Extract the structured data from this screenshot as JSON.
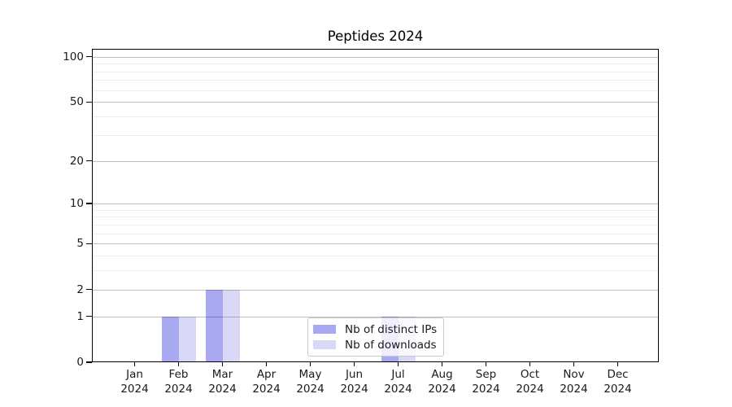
{
  "title": "Peptides 2024",
  "legend": {
    "items": [
      {
        "label": "Nb of distinct IPs",
        "color": "#a9a9f2"
      },
      {
        "label": "Nb of downloads",
        "color": "#d9d9f7"
      }
    ]
  },
  "colors": {
    "bar_distinct_ips": "#a9a9f2",
    "bar_downloads": "#d9d9f7",
    "grid_major": "#c2c2c2",
    "grid_minor": "#ededed",
    "axis": "#000000",
    "tick_text": "#1a1a1a"
  },
  "chart_data": {
    "type": "bar",
    "title": "Peptides 2024",
    "categories": [
      "Jan 2024",
      "Feb 2024",
      "Mar 2024",
      "Apr 2024",
      "May 2024",
      "Jun 2024",
      "Jul 2024",
      "Aug 2024",
      "Sep 2024",
      "Oct 2024",
      "Nov 2024",
      "Dec 2024"
    ],
    "series": [
      {
        "name": "Nb of distinct IPs",
        "color": "#a9a9f2",
        "values": [
          0,
          1,
          2,
          0,
          0,
          0,
          1,
          0,
          0,
          0,
          0,
          0
        ]
      },
      {
        "name": "Nb of downloads",
        "color": "#d9d9f7",
        "values": [
          0,
          1,
          2,
          0,
          0,
          0,
          1,
          0,
          0,
          0,
          0,
          0
        ]
      }
    ],
    "xlabel": "",
    "ylabel": "",
    "yscale": "log1p",
    "ylim": [
      0,
      113
    ],
    "y_major_ticks": [
      0,
      1,
      2,
      5,
      10,
      20,
      50,
      100
    ],
    "y_minor_ticks": [
      3,
      4,
      6,
      7,
      8,
      9,
      30,
      40,
      60,
      70,
      80,
      90
    ],
    "grid": "horizontal, major and minor",
    "legend_position": "lower center inside plot"
  }
}
